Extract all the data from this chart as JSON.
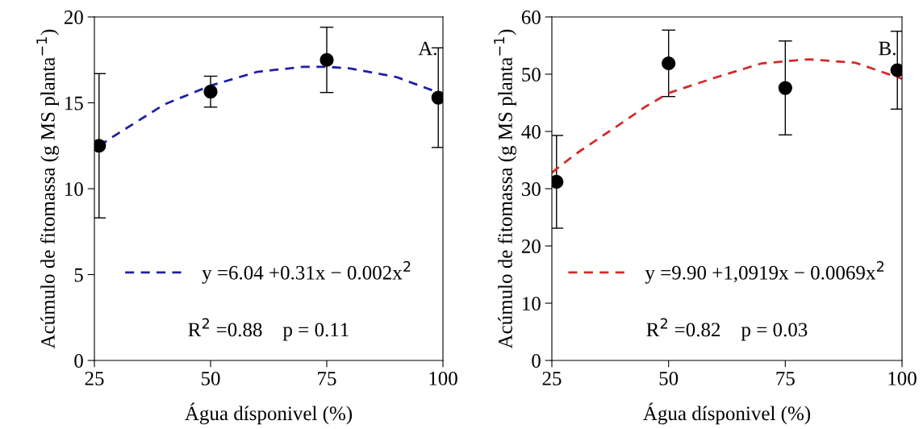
{
  "chart_data": [
    {
      "type": "scatter",
      "xlabel": "Água dísponivel (%)",
      "ylabel": "Acúmulo de fitomassa (g MS planta$^{−1}$)",
      "xlim": [
        25,
        100
      ],
      "xticks": [
        25,
        50,
        75,
        100
      ],
      "ylim": [
        0,
        20
      ],
      "yticks": [
        0,
        5,
        10,
        15,
        20
      ],
      "grid": false,
      "legend": "bottom",
      "annotations": [
        "A.",
        "R$^{2}$ =0.88    p = 0.11"
      ],
      "series": [
        {
          "marker": "circle",
          "color": "#000000",
          "x": [
            26,
            50,
            75,
            99
          ],
          "values": [
            12.5,
            15.65,
            17.5,
            15.3
          ],
          "errors": [
            4.2,
            0.9,
            1.9,
            2.9
          ]
        },
        {
          "type": "line",
          "name": "y =6.04 +0.31x − 0.002x$^{2}$",
          "color": "#1f1fa8",
          "line_style": "dashed",
          "x": [
            26,
            30,
            40,
            50,
            60,
            70,
            75,
            80,
            90,
            100
          ],
          "values": [
            12.5,
            13.2,
            14.9,
            16.0,
            16.8,
            17.1,
            17.1,
            17.0,
            16.5,
            15.5
          ]
        }
      ]
    },
    {
      "type": "scatter",
      "xlabel": "Água dísponivel (%)",
      "ylabel": "Acúmulo de fitomassa (g MS planta$^{−1}$)",
      "xlim": [
        25,
        100
      ],
      "xticks": [
        25,
        50,
        75,
        100
      ],
      "ylim": [
        0,
        60
      ],
      "yticks": [
        0,
        10,
        20,
        30,
        40,
        50,
        60
      ],
      "grid": false,
      "legend": "bottom",
      "annotations": [
        "B.",
        "R$^{2}$ =0.82    p = 0.03"
      ],
      "series": [
        {
          "marker": "circle",
          "color": "#000000",
          "x": [
            26,
            50,
            75,
            99
          ],
          "values": [
            31.2,
            51.9,
            47.6,
            50.7
          ],
          "errors": [
            8.1,
            5.8,
            8.2,
            6.8
          ]
        },
        {
          "type": "line",
          "name": "y =9.90 +1,0919x − 0.0069x$^{2}$",
          "color": "#d42a2a",
          "line_style": "dashed",
          "x": [
            25,
            30,
            40,
            45,
            50,
            60,
            70,
            80,
            90,
            100
          ],
          "values": [
            32.8,
            36.0,
            41.5,
            44.3,
            46.7,
            49.4,
            51.9,
            52.6,
            52.0,
            49.2
          ]
        }
      ]
    }
  ]
}
